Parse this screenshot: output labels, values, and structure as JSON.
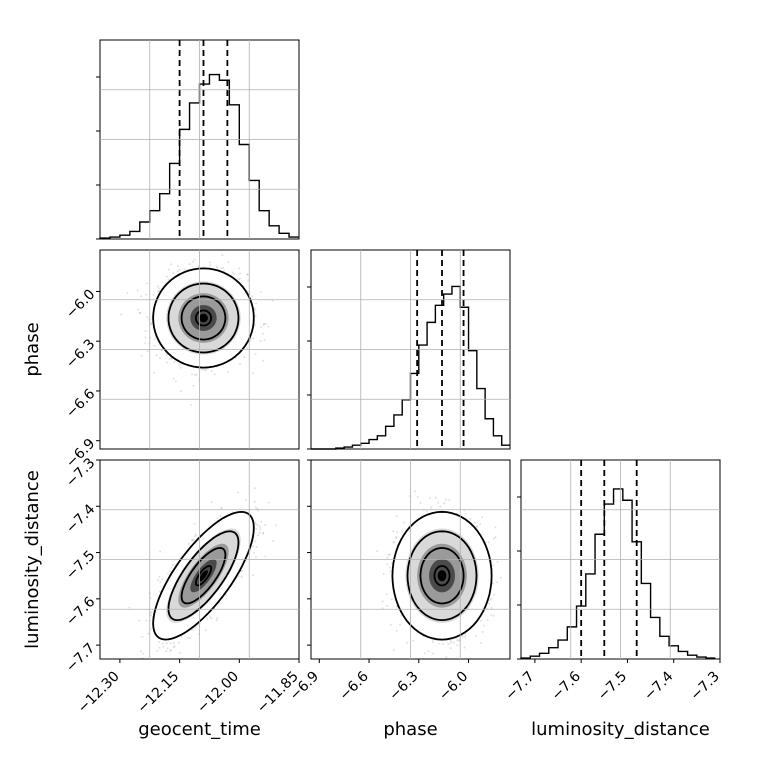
{
  "chart_data": {
    "type": "corner",
    "parameters": [
      {
        "name": "geocent_time",
        "range": [
          -12.35,
          -11.85
        ],
        "ticks": [
          -12.3,
          -12.15,
          -12.0,
          -11.85
        ],
        "tick_labels": [
          "−12.30",
          "−12.15",
          "−12.00",
          "−11.85"
        ],
        "quantiles": [
          -12.15,
          -12.09,
          -12.03
        ],
        "hist_bins": [
          -12.35,
          -12.325,
          -12.3,
          -12.275,
          -12.25,
          -12.225,
          -12.2,
          -12.175,
          -12.15,
          -12.125,
          -12.1,
          -12.075,
          -12.05,
          -12.025,
          -12.0,
          -11.975,
          -11.95,
          -11.925,
          -11.9,
          -11.875,
          -11.85
        ],
        "hist_counts": [
          0.005,
          0.01,
          0.02,
          0.04,
          0.09,
          0.15,
          0.24,
          0.4,
          0.58,
          0.72,
          0.82,
          0.87,
          0.84,
          0.71,
          0.5,
          0.31,
          0.15,
          0.07,
          0.03,
          0.01
        ],
        "hist_ylim": [
          0,
          1.0
        ]
      },
      {
        "name": "phase",
        "range": [
          -6.95,
          -5.75
        ],
        "ticks": [
          -6.9,
          -6.6,
          -6.3,
          -6.0
        ],
        "tick_labels": [
          "−6.9",
          "−6.6",
          "−6.3",
          "−6.0"
        ],
        "quantiles": [
          -6.31,
          -6.16,
          -6.03
        ],
        "hist_bins": [
          -6.95,
          -6.9,
          -6.85,
          -6.8,
          -6.75,
          -6.7,
          -6.65,
          -6.6,
          -6.55,
          -6.5,
          -6.45,
          -6.4,
          -6.35,
          -6.3,
          -6.25,
          -6.2,
          -6.15,
          -6.1,
          -6.05,
          -6.0,
          -5.95,
          -5.9,
          -5.85,
          -5.8,
          -5.75
        ],
        "hist_counts": [
          0.0,
          0.0,
          0.0,
          0.005,
          0.01,
          0.02,
          0.03,
          0.05,
          0.07,
          0.12,
          0.18,
          0.26,
          0.4,
          0.55,
          0.67,
          0.76,
          0.82,
          0.86,
          0.75,
          0.52,
          0.32,
          0.16,
          0.07,
          0.02
        ],
        "hist_ylim": [
          0,
          1.0
        ]
      },
      {
        "name": "luminosity_distance",
        "range": [
          -7.73,
          -7.3
        ],
        "ticks": [
          -7.7,
          -7.6,
          -7.5,
          -7.4,
          -7.3
        ],
        "tick_labels": [
          "−7.7",
          "−7.6",
          "−7.5",
          "−7.4",
          "−7.3"
        ],
        "quantiles": [
          -7.6,
          -7.55,
          -7.48
        ],
        "hist_bins": [
          -7.73,
          -7.71,
          -7.69,
          -7.67,
          -7.65,
          -7.63,
          -7.61,
          -7.59,
          -7.57,
          -7.55,
          -7.53,
          -7.51,
          -7.49,
          -7.47,
          -7.45,
          -7.43,
          -7.41,
          -7.39,
          -7.37,
          -7.35,
          -7.33,
          -7.31
        ],
        "hist_counts": [
          0.005,
          0.015,
          0.03,
          0.06,
          0.1,
          0.17,
          0.28,
          0.45,
          0.66,
          0.82,
          0.9,
          0.84,
          0.62,
          0.4,
          0.22,
          0.12,
          0.07,
          0.04,
          0.02,
          0.01,
          0.005
        ],
        "hist_ylim": [
          0,
          1.0
        ]
      }
    ],
    "hist2d": [
      {
        "x": "geocent_time",
        "y": "phase",
        "center": [
          -12.09,
          -6.16
        ],
        "sigma": [
          0.055,
          0.13
        ],
        "rho": 0.0
      },
      {
        "x": "geocent_time",
        "y": "luminosity_distance",
        "center": [
          -12.09,
          -7.55
        ],
        "sigma": [
          0.055,
          0.06
        ],
        "rho": 0.75
      },
      {
        "x": "phase",
        "y": "luminosity_distance",
        "center": [
          -6.16,
          -7.55
        ],
        "sigma": [
          0.13,
          0.06
        ],
        "rho": 0.0
      }
    ],
    "grid": true,
    "quantile_line_style": "dashed"
  }
}
